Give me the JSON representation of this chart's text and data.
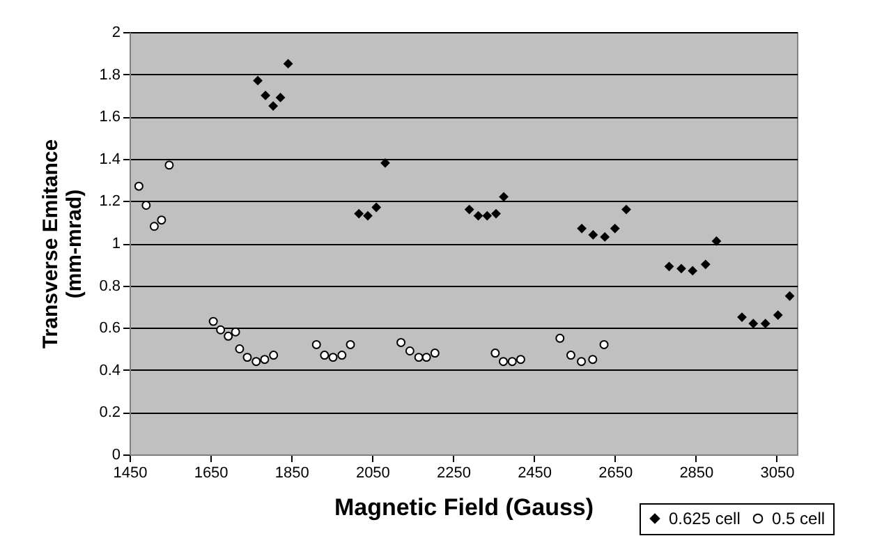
{
  "chart_data": {
    "type": "scatter",
    "xlabel": "Magnetic Field (Gauss)",
    "ylabel": "Transverse Emitance\n(mm-mrad)",
    "xlim": [
      1450,
      3100
    ],
    "xticks": [
      1450,
      1650,
      1850,
      2050,
      2250,
      2450,
      2650,
      2850,
      3050
    ],
    "ylim": [
      0,
      2
    ],
    "yticks": [
      0,
      0.2,
      0.4,
      0.6,
      0.8,
      1,
      1.2,
      1.4,
      1.6,
      1.8,
      2
    ],
    "grid": "y",
    "legend": "bottom right",
    "series": [
      {
        "name": "0.625 cell",
        "color": "#000000",
        "marker": "diamond",
        "x": [
          1767,
          1786,
          1805,
          1823,
          1842,
          2017,
          2039,
          2060,
          2082,
          2290,
          2312,
          2334,
          2356,
          2375,
          2568,
          2596,
          2625,
          2650,
          2678,
          2784,
          2814,
          2842,
          2874,
          2901,
          2964,
          2992,
          3022,
          3053,
          3082
        ],
        "values": [
          1.77,
          1.7,
          1.65,
          1.69,
          1.85,
          1.14,
          1.13,
          1.17,
          1.38,
          1.16,
          1.13,
          1.13,
          1.14,
          1.22,
          1.07,
          1.04,
          1.03,
          1.07,
          1.16,
          0.89,
          0.88,
          0.87,
          0.9,
          1.01,
          0.65,
          0.62,
          0.62,
          0.66,
          0.75
        ]
      },
      {
        "name": "0.5 cell",
        "color": "#ffffff",
        "marker": "circle",
        "x": [
          1473,
          1491,
          1511,
          1529,
          1548,
          1657,
          1675,
          1694,
          1712,
          1722,
          1741,
          1763,
          1784,
          1806,
          1912,
          1932,
          1953,
          1975,
          1996,
          2121,
          2143,
          2165,
          2184,
          2205,
          2354,
          2374,
          2396,
          2417,
          2514,
          2541,
          2567,
          2595,
          2623
        ],
        "values": [
          1.27,
          1.18,
          1.08,
          1.11,
          1.37,
          0.63,
          0.59,
          0.56,
          0.58,
          0.5,
          0.46,
          0.44,
          0.45,
          0.47,
          0.52,
          0.47,
          0.46,
          0.47,
          0.52,
          0.53,
          0.49,
          0.46,
          0.46,
          0.48,
          0.48,
          0.44,
          0.44,
          0.45,
          0.55,
          0.47,
          0.44,
          0.45,
          0.52
        ]
      }
    ]
  }
}
